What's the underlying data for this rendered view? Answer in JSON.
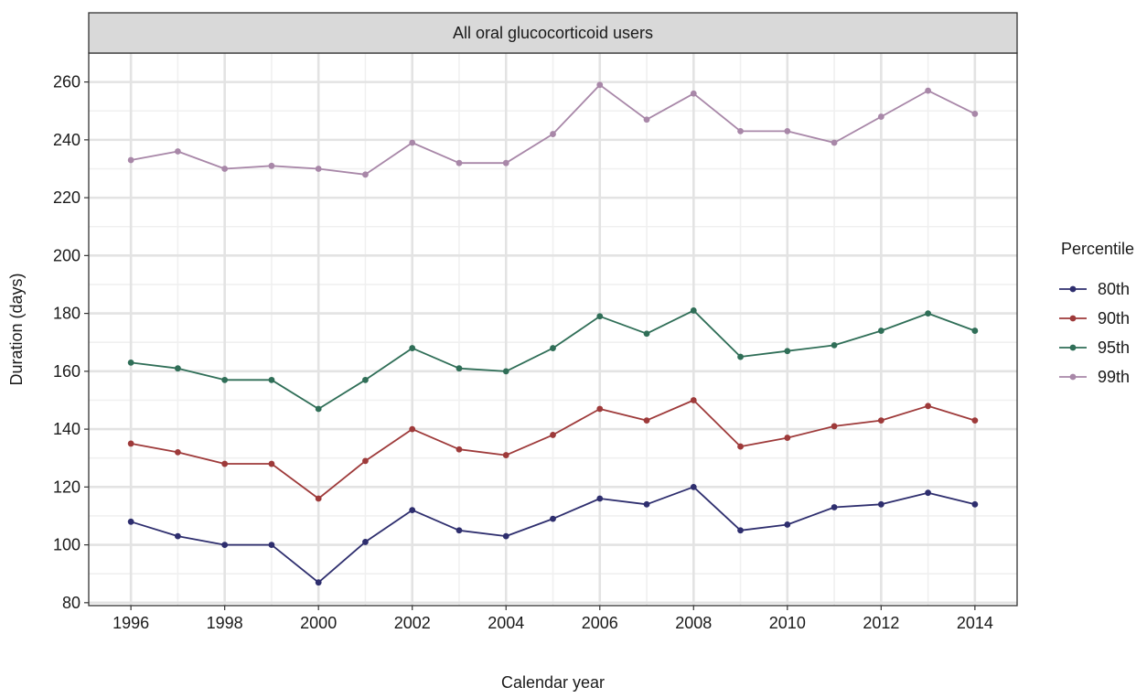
{
  "chart_data": {
    "type": "line",
    "title": "",
    "strip_label": "All oral glucocorticoid users",
    "xlabel": "Calendar year",
    "ylabel": "Duration (days)",
    "xlim": [
      1995.1,
      2014.9
    ],
    "ylim": [
      79,
      270
    ],
    "x_ticks": [
      1996,
      1998,
      2000,
      2002,
      2004,
      2006,
      2008,
      2010,
      2012,
      2014
    ],
    "y_ticks": [
      80,
      100,
      120,
      140,
      160,
      180,
      200,
      220,
      240,
      260
    ],
    "grid": true,
    "legend": {
      "title": "Percentile",
      "position": "right"
    },
    "x": [
      1996,
      1997,
      1998,
      1999,
      2000,
      2001,
      2002,
      2003,
      2004,
      2005,
      2006,
      2007,
      2008,
      2009,
      2010,
      2011,
      2012,
      2013,
      2014
    ],
    "series": [
      {
        "name": "80th",
        "color": "#2e2e6e",
        "values": [
          108,
          103,
          100,
          100,
          87,
          101,
          112,
          105,
          103,
          109,
          116,
          114,
          120,
          105,
          107,
          113,
          114,
          118,
          114
        ]
      },
      {
        "name": "90th",
        "color": "#9e3a3a",
        "values": [
          135,
          132,
          128,
          128,
          116,
          129,
          140,
          133,
          131,
          138,
          147,
          143,
          150,
          134,
          137,
          141,
          143,
          148,
          143
        ]
      },
      {
        "name": "95th",
        "color": "#2f6e57",
        "values": [
          163,
          161,
          157,
          157,
          147,
          157,
          168,
          161,
          160,
          168,
          179,
          173,
          181,
          165,
          167,
          169,
          174,
          180,
          174
        ]
      },
      {
        "name": "99th",
        "color": "#a887a8",
        "values": [
          233,
          236,
          230,
          231,
          230,
          228,
          239,
          232,
          232,
          242,
          259,
          247,
          256,
          243,
          243,
          239,
          248,
          257,
          249
        ]
      }
    ]
  }
}
